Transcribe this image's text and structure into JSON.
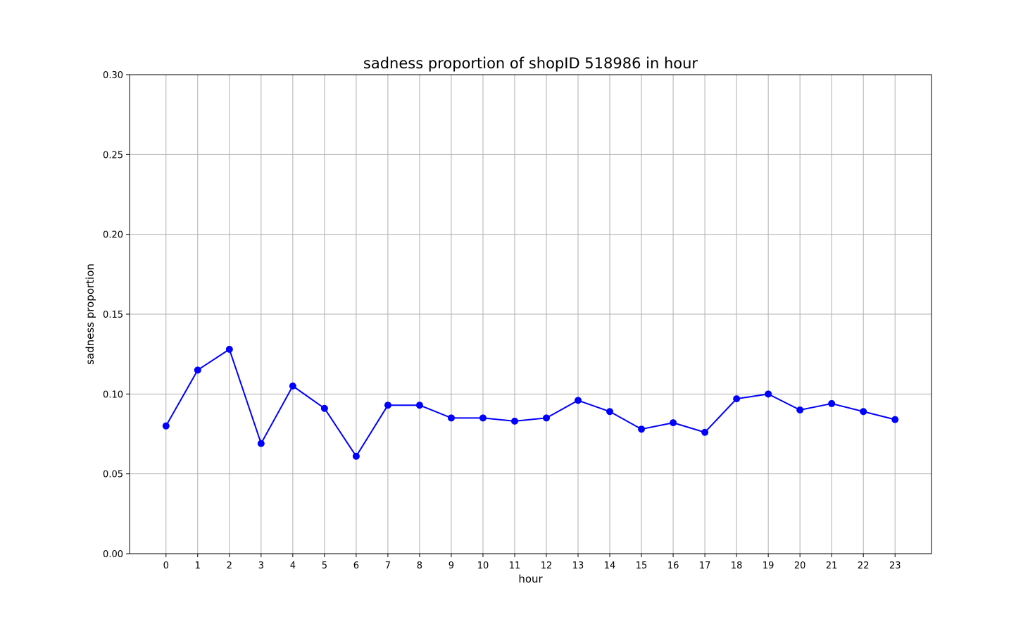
{
  "chart_data": {
    "type": "line",
    "title": "sadness proportion of shopID 518986 in hour",
    "xlabel": "hour",
    "ylabel": "sadness proportion",
    "x": [
      0,
      1,
      2,
      3,
      4,
      5,
      6,
      7,
      8,
      9,
      10,
      11,
      12,
      13,
      14,
      15,
      16,
      17,
      18,
      19,
      20,
      21,
      22,
      23
    ],
    "x_tick_labels": [
      "0",
      "1",
      "2",
      "3",
      "4",
      "5",
      "6",
      "7",
      "8",
      "9",
      "10",
      "11",
      "12",
      "13",
      "14",
      "15",
      "16",
      "17",
      "18",
      "19",
      "20",
      "21",
      "22",
      "23"
    ],
    "xlim": [
      -1.15,
      24.15
    ],
    "ylim": [
      0,
      0.3
    ],
    "y_ticks": [
      0.0,
      0.05,
      0.1,
      0.15,
      0.2,
      0.25,
      0.3
    ],
    "y_tick_labels": [
      "0.00",
      "0.05",
      "0.10",
      "0.15",
      "0.20",
      "0.25",
      "0.30"
    ],
    "series": [
      {
        "color": "#0000ff",
        "marker": "circle",
        "values": [
          0.08,
          0.115,
          0.128,
          0.069,
          0.105,
          0.091,
          0.061,
          0.093,
          0.093,
          0.085,
          0.085,
          0.083,
          0.085,
          0.096,
          0.089,
          0.078,
          0.082,
          0.076,
          0.097,
          0.1,
          0.09,
          0.094,
          0.089,
          0.084
        ]
      }
    ],
    "grid": true,
    "grid_color": "#b0b0b0",
    "legend": "none"
  }
}
